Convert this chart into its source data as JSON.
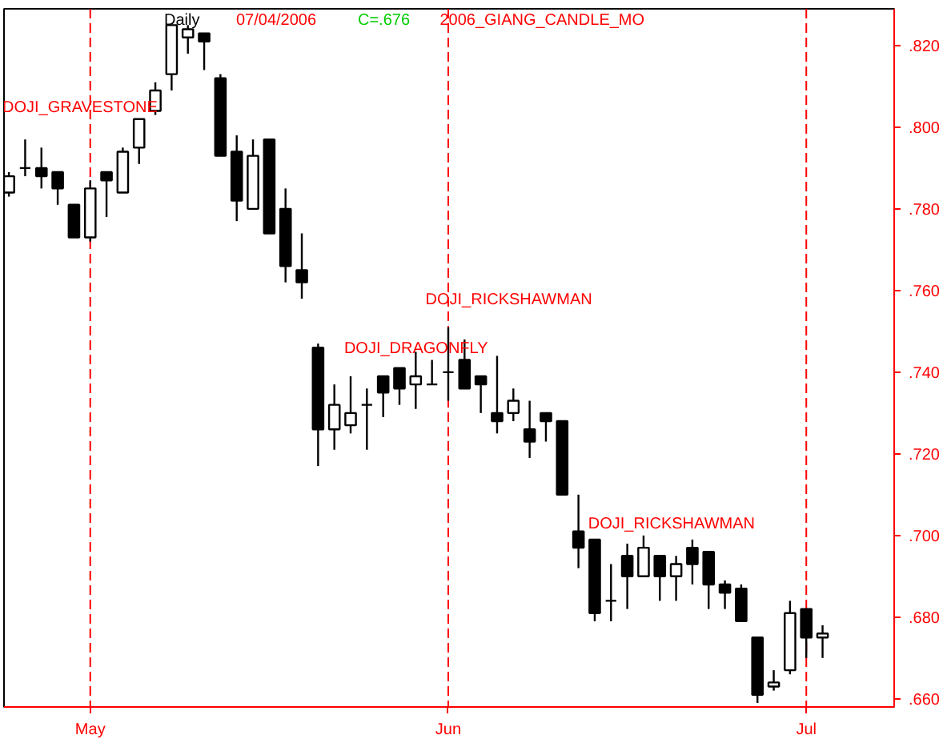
{
  "chart_data": {
    "type": "candlestick",
    "title": "Daily",
    "annotations": [
      "07/04/2006",
      "C=.676",
      "2006_GIANG_CANDLE_MO",
      "DOJI_GRAVESTONE",
      "DOJI_DRAGONFLY",
      "DOJI_RICKSHAWMAN",
      "DOJI_RICKSHAWMAN"
    ],
    "categories": [
      null,
      null,
      null,
      null,
      null,
      "May",
      null,
      null,
      null,
      null,
      null,
      null,
      null,
      null,
      null,
      null,
      null,
      null,
      null,
      null,
      null,
      null,
      null,
      null,
      null,
      null,
      null,
      "Jun",
      null,
      null,
      null,
      null,
      null,
      null,
      null,
      null,
      null,
      null,
      null,
      null,
      null,
      null,
      null,
      null,
      null,
      null,
      null,
      null,
      null,
      "Jul",
      null
    ],
    "ohlc": [
      [
        0.784,
        0.789,
        0.783,
        0.788
      ],
      [
        0.79,
        0.797,
        0.788,
        0.79
      ],
      [
        0.79,
        0.795,
        0.785,
        0.788
      ],
      [
        0.789,
        0.789,
        0.781,
        0.785
      ],
      [
        0.781,
        0.781,
        0.773,
        0.773
      ],
      [
        0.773,
        0.787,
        0.772,
        0.785
      ],
      [
        0.789,
        0.789,
        0.778,
        0.787
      ],
      [
        0.784,
        0.795,
        0.784,
        0.794
      ],
      [
        0.795,
        0.802,
        0.791,
        0.802
      ],
      [
        0.804,
        0.811,
        0.803,
        0.809
      ],
      [
        0.813,
        0.825,
        0.809,
        0.825
      ],
      [
        0.822,
        0.825,
        0.818,
        0.824
      ],
      [
        0.823,
        0.823,
        0.814,
        0.821
      ],
      [
        0.812,
        0.813,
        0.793,
        0.793
      ],
      [
        0.794,
        0.798,
        0.777,
        0.782
      ],
      [
        0.78,
        0.797,
        0.78,
        0.793
      ],
      [
        0.797,
        0.797,
        0.774,
        0.774
      ],
      [
        0.78,
        0.785,
        0.762,
        0.766
      ],
      [
        0.765,
        0.774,
        0.758,
        0.762
      ],
      [
        0.746,
        0.747,
        0.717,
        0.726
      ],
      [
        0.726,
        0.737,
        0.721,
        0.732
      ],
      [
        0.727,
        0.739,
        0.725,
        0.73
      ],
      [
        0.732,
        0.736,
        0.721,
        0.732
      ],
      [
        0.739,
        0.739,
        0.729,
        0.735
      ],
      [
        0.741,
        0.741,
        0.732,
        0.736
      ],
      [
        0.737,
        0.745,
        0.731,
        0.739
      ],
      [
        0.737,
        0.743,
        0.737,
        0.737
      ],
      [
        0.74,
        0.751,
        0.733,
        0.74
      ],
      [
        0.743,
        0.748,
        0.736,
        0.736
      ],
      [
        0.739,
        0.739,
        0.73,
        0.737
      ],
      [
        0.73,
        0.744,
        0.725,
        0.728
      ],
      [
        0.73,
        0.736,
        0.728,
        0.733
      ],
      [
        0.726,
        0.733,
        0.719,
        0.723
      ],
      [
        0.73,
        0.73,
        0.723,
        0.728
      ],
      [
        0.728,
        0.728,
        0.71,
        0.71
      ],
      [
        0.701,
        0.71,
        0.692,
        0.697
      ],
      [
        0.699,
        0.699,
        0.679,
        0.681
      ],
      [
        0.684,
        0.693,
        0.679,
        0.684
      ],
      [
        0.695,
        0.698,
        0.682,
        0.69
      ],
      [
        0.69,
        0.7,
        0.69,
        0.697
      ],
      [
        0.695,
        0.695,
        0.684,
        0.69
      ],
      [
        0.69,
        0.695,
        0.684,
        0.693
      ],
      [
        0.697,
        0.699,
        0.688,
        0.693
      ],
      [
        0.696,
        0.696,
        0.682,
        0.688
      ],
      [
        0.688,
        0.689,
        0.682,
        0.686
      ],
      [
        0.687,
        0.688,
        0.679,
        0.679
      ],
      [
        0.675,
        0.675,
        0.659,
        0.661
      ],
      [
        0.663,
        0.667,
        0.662,
        0.664
      ],
      [
        0.667,
        0.684,
        0.666,
        0.681
      ],
      [
        0.682,
        0.682,
        0.67,
        0.675
      ],
      [
        0.675,
        0.678,
        0.67,
        0.676
      ]
    ],
    "ylim": [
      0.658,
      0.829
    ],
    "yticks": [
      {
        "value": 0.66,
        "label": ".660"
      },
      {
        "value": 0.68,
        "label": ".680"
      },
      {
        "value": 0.7,
        "label": ".700"
      },
      {
        "value": 0.72,
        "label": ".720"
      },
      {
        "value": 0.74,
        "label": ".740"
      },
      {
        "value": 0.76,
        "label": ".760"
      },
      {
        "value": 0.78,
        "label": ".780"
      },
      {
        "value": 0.8,
        "label": ".800"
      },
      {
        "value": 0.82,
        "label": ".820"
      }
    ],
    "ref_lines": [
      {
        "axis": "x",
        "value": "May",
        "color": "#ff0000",
        "line_style": "dashed"
      },
      {
        "axis": "x",
        "value": "Jun",
        "color": "#ff0000",
        "line_style": "dashed"
      },
      {
        "axis": "x",
        "value": "Jul",
        "color": "#ff0000",
        "line_style": "dashed"
      }
    ],
    "grid": false
  }
}
